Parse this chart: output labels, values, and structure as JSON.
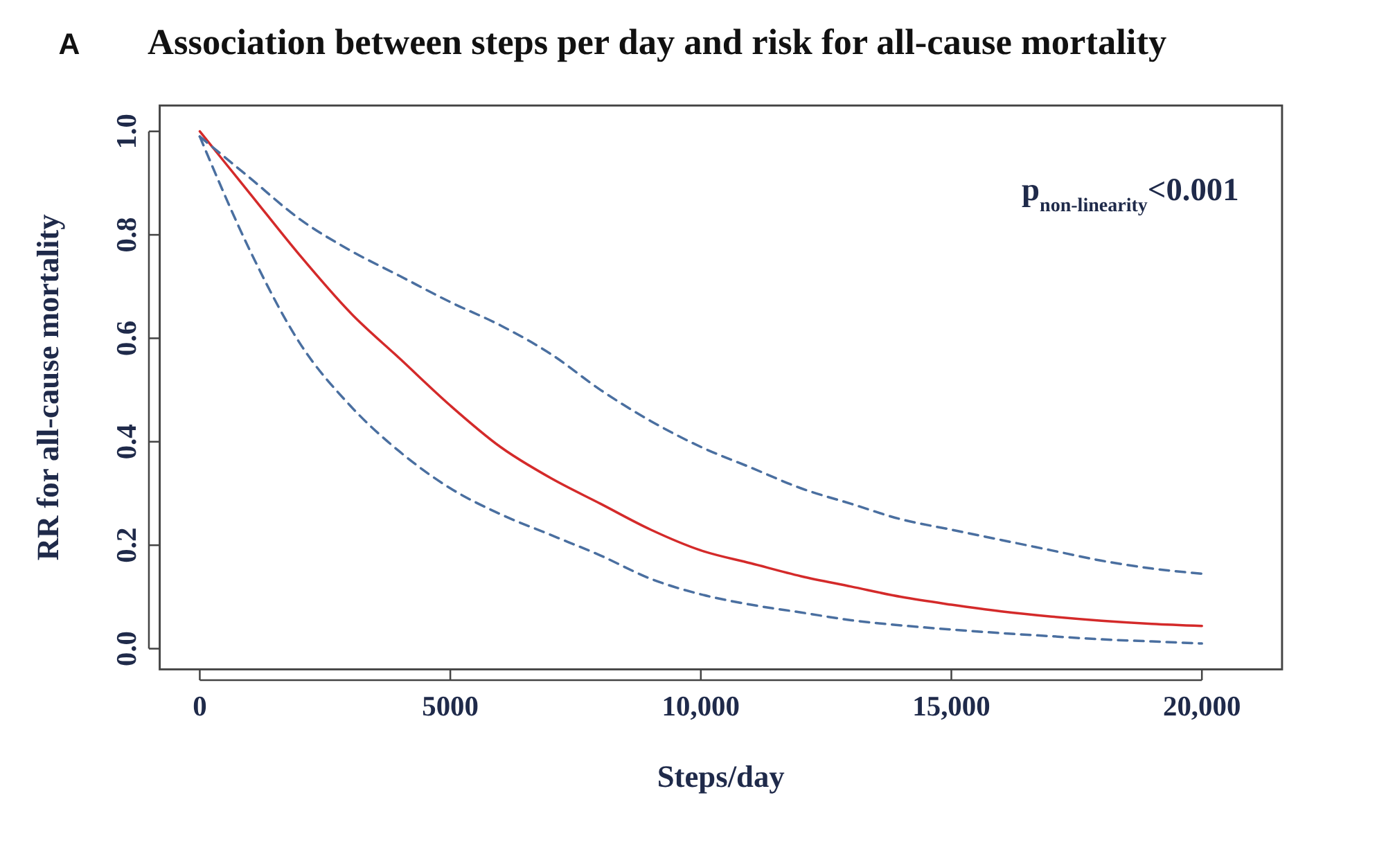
{
  "chart_data": {
    "type": "line",
    "title": "Association between steps per day and risk for all-cause mortality",
    "xlabel": "Steps/day",
    "ylabel": "RR for all-cause mortality",
    "annotations": [
      "A",
      "p$_{non-linearity}$<0.001"
    ],
    "x": [
      0,
      1000,
      2000,
      3000,
      4000,
      5000,
      6000,
      7000,
      8000,
      9000,
      10000,
      11000,
      12000,
      13000,
      14000,
      15000,
      16000,
      17000,
      18000,
      19000,
      20000
    ],
    "series": [
      {
        "color": "#d42a2a",
        "line_style": "solid",
        "values": [
          1.0,
          0.88,
          0.76,
          0.65,
          0.56,
          0.47,
          0.39,
          0.33,
          0.28,
          0.23,
          0.19,
          0.165,
          0.14,
          0.12,
          0.1,
          0.085,
          0.072,
          0.062,
          0.054,
          0.048,
          0.044
        ]
      },
      {
        "color": "#4a6fa0",
        "line_style": "dashed",
        "values": [
          0.99,
          0.91,
          0.83,
          0.77,
          0.72,
          0.67,
          0.625,
          0.57,
          0.5,
          0.44,
          0.39,
          0.35,
          0.31,
          0.28,
          0.25,
          0.23,
          0.21,
          0.19,
          0.17,
          0.155,
          0.145
        ]
      },
      {
        "color": "#4a6fa0",
        "line_style": "dashed",
        "values": [
          0.99,
          0.77,
          0.59,
          0.47,
          0.38,
          0.31,
          0.26,
          0.22,
          0.18,
          0.135,
          0.105,
          0.085,
          0.07,
          0.055,
          0.045,
          0.037,
          0.03,
          0.024,
          0.018,
          0.014,
          0.01
        ]
      }
    ],
    "xlim": [
      -800,
      21600
    ],
    "ylim": [
      -0.04,
      1.05
    ],
    "xticks": [
      0,
      5000,
      {
        "value": 10000,
        "label": "10,000"
      },
      {
        "value": 15000,
        "label": "15,000"
      },
      {
        "value": 20000,
        "label": "20,000"
      }
    ],
    "yticks": [
      {
        "value": 0,
        "label": "0.0"
      },
      0.2,
      0.4,
      0.6,
      0.8,
      {
        "value": 1,
        "label": "1.0"
      }
    ],
    "grid": false
  }
}
